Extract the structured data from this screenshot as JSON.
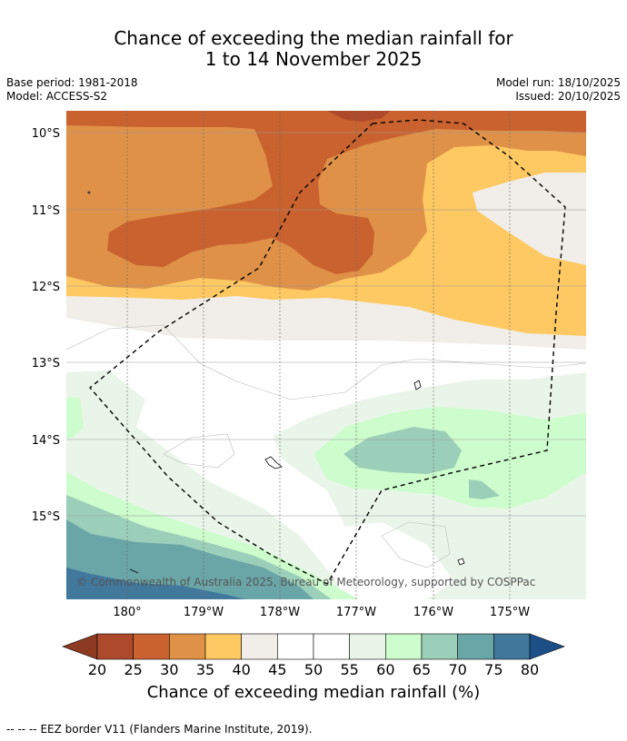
{
  "header": {
    "title_line1": "Chance of exceeding the median rainfall for",
    "title_line2": "1 to 14 November 2025",
    "base_period": "Base period: 1981-2018",
    "model": "Model: ACCESS-S2",
    "model_run": "Model run: 18/10/2025",
    "issued": "Issued: 20/10/2025"
  },
  "map": {
    "lat_labels": [
      "10°S",
      "11°S",
      "12°S",
      "13°S",
      "14°S",
      "15°S"
    ],
    "lon_labels": [
      "180°",
      "179°W",
      "178°W",
      "177°W",
      "176°W",
      "175°W"
    ],
    "copyright": "© Commonwealth of Australia 2025, Bureau of Meteorology, supported by COSPPac"
  },
  "colorbar": {
    "labels": [
      "20",
      "25",
      "30",
      "35",
      "40",
      "45",
      "50",
      "55",
      "60",
      "65",
      "70",
      "75",
      "80"
    ],
    "colors": [
      "#ad4a2b",
      "#c9622f",
      "#df9148",
      "#fec962",
      "#f1ede8",
      "#ffffff",
      "#ffffff",
      "#eaf5e9",
      "#cdfdcc",
      "#9ccfba",
      "#6aa6a8",
      "#41789c"
    ],
    "under_color": "#8c3a22",
    "over_color": "#1d4f87",
    "title": "Chance of exceeding median rainfall (%)"
  },
  "footer": {
    "legend_symbol": "--  --  --",
    "legend_text": "EEZ border V11 (Flanders Marine Institute, 2019)."
  }
}
